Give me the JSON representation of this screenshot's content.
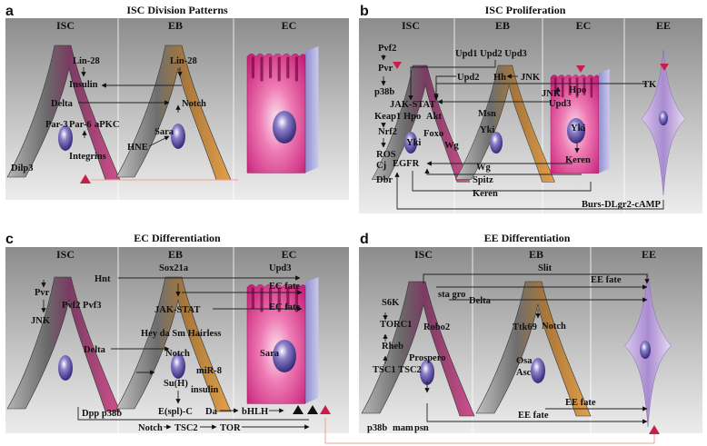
{
  "panels": {
    "a": {
      "letter": "a",
      "title": "ISC Division Patterns",
      "columns": [
        "ISC",
        "EB",
        "EC"
      ],
      "labels": {
        "lin28_isc": "Lin-28",
        "insulin": "Insulin",
        "delta": "Delta",
        "par3": "Par-3",
        "par6": "Par-6",
        "apkc": "aPKC",
        "integrins": "Integrins",
        "dilp3": "Dilp3",
        "lin28_eb": "Lin-28",
        "notch": "Notch",
        "sara": "Sara",
        "hne": "HNE"
      }
    },
    "b": {
      "letter": "b",
      "title": "ISC Proliferation",
      "columns": [
        "ISC",
        "EB",
        "EC",
        "EE"
      ],
      "labels": {
        "pvf2": "Pvf2",
        "pvr": "Pvr",
        "p38b": "p38b",
        "keap1": "Keap1",
        "nrf2": "Nrf2",
        "ros": "ROS",
        "cj": "Cj",
        "dbr": "Dbr",
        "jakstat": "JAK-STAT",
        "hpo_isc": "Hpo",
        "akt": "Akt",
        "foxo": "Foxo",
        "yki_isc": "Yki",
        "egfr": "EGFR",
        "upd_trio": "Upd1 Upd2 Upd3",
        "upd2": "Upd2",
        "hh": "Hh",
        "jnk_eb": "JNK",
        "msn": "Msn",
        "yki_eb": "Yki",
        "wg_eb": "Wg",
        "wg_low": "Wg",
        "spitz": "Spitz",
        "keren_low": "Keren",
        "jnk_ec": "JNK",
        "hpo_ec": "Hpo",
        "upd3": "Upd3",
        "yki_ec": "Yki",
        "keren_ec": "Keren",
        "tk": "TK",
        "burs": "Burs-DLgr2-cAMP"
      }
    },
    "c": {
      "letter": "c",
      "title": "EC Differentiation",
      "columns": [
        "ISC",
        "EB",
        "EC"
      ],
      "labels": {
        "pvr": "Pvr",
        "pvf2pvf3": "Pvf2 Pvf3",
        "jnk": "JNK",
        "delta": "Delta",
        "dpp": "Dpp p38b",
        "hnt": "Hnt",
        "sox21a": "Sox21a",
        "upd3": "Upd3",
        "ecfate1": "EC fate",
        "jakstat": "JAK-STAT",
        "ecfate2": "EC fate",
        "heyda": "Hey da Sm Hairless",
        "notch": "Notch",
        "mir8": "miR-8",
        "su": "Su(H)",
        "insulin": "insulin",
        "espl": "E(spl)-C",
        "da": "Da",
        "bhlh": "bHLH",
        "sara": "Sara",
        "notch_low": "Notch",
        "tsc2": "TSC2",
        "tor": "TOR"
      }
    },
    "d": {
      "letter": "d",
      "title": "EE Differentiation",
      "columns": [
        "ISC",
        "EB",
        "EE"
      ],
      "labels": {
        "slit": "Slit",
        "eefate1": "EE fate",
        "s6k": "S6K",
        "stagro": "sta gro",
        "delta": "Delta",
        "torc1": "TORC1",
        "robo2": "Robo2",
        "ttk69": "Ttk69",
        "notch": "Notch",
        "rheb": "Rheb",
        "prospero": "Prospero",
        "osa": "Osa",
        "tsc": "TSC1 TSC2",
        "asc": "Asc",
        "eefate2": "EE fate",
        "eefate3": "EE fate",
        "p38b": "p38b",
        "mam": "mam",
        "psn": "psn"
      }
    }
  },
  "colors": {
    "isc": "#c8407e",
    "eb": "#d89a3e",
    "ec": "#e0459a",
    "ee": "#b89ad6",
    "nucleus": "#3b2f86"
  }
}
